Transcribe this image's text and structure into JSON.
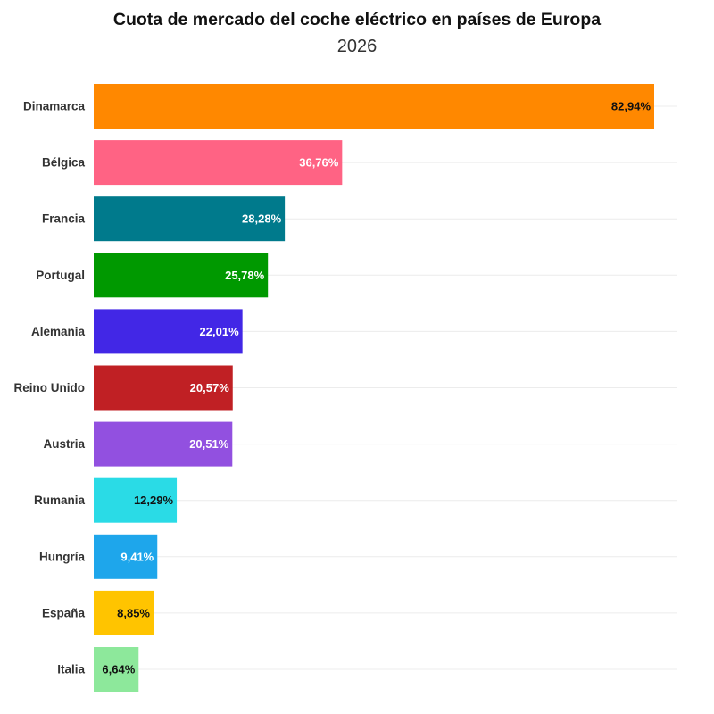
{
  "chart_data": {
    "type": "bar",
    "orientation": "horizontal",
    "title": "Cuota de mercado del coche eléctrico en países de Europa",
    "subtitle": "2026",
    "xlabel": "",
    "ylabel": "",
    "xlim": [
      0,
      100
    ],
    "grid": true,
    "legend": "none",
    "categories": [
      "Dinamarca",
      "Bélgica",
      "Francia",
      "Portugal",
      "Alemania",
      "Reino Unido",
      "Austria",
      "Rumania",
      "Hungría",
      "España",
      "Italia"
    ],
    "values": [
      82.94,
      36.76,
      28.28,
      25.78,
      22.01,
      20.57,
      20.51,
      12.29,
      9.41,
      8.85,
      6.64
    ],
    "value_labels": [
      "82,94%",
      "36,76%",
      "28,28%",
      "25,78%",
      "22,01%",
      "20,57%",
      "20,51%",
      "12,29%",
      "9,41%",
      "8,85%",
      "6,64%"
    ],
    "colors": [
      "#ff8800",
      "#ff6384",
      "#007a8c",
      "#009900",
      "#4227e6",
      "#c02024",
      "#9250e0",
      "#2adbe6",
      "#1ea6eb",
      "#ffc400",
      "#8de89b"
    ],
    "label_colors": [
      "#111111",
      "#ffffff",
      "#ffffff",
      "#ffffff",
      "#ffffff",
      "#ffffff",
      "#ffffff",
      "#111111",
      "#ffffff",
      "#111111",
      "#111111"
    ]
  }
}
